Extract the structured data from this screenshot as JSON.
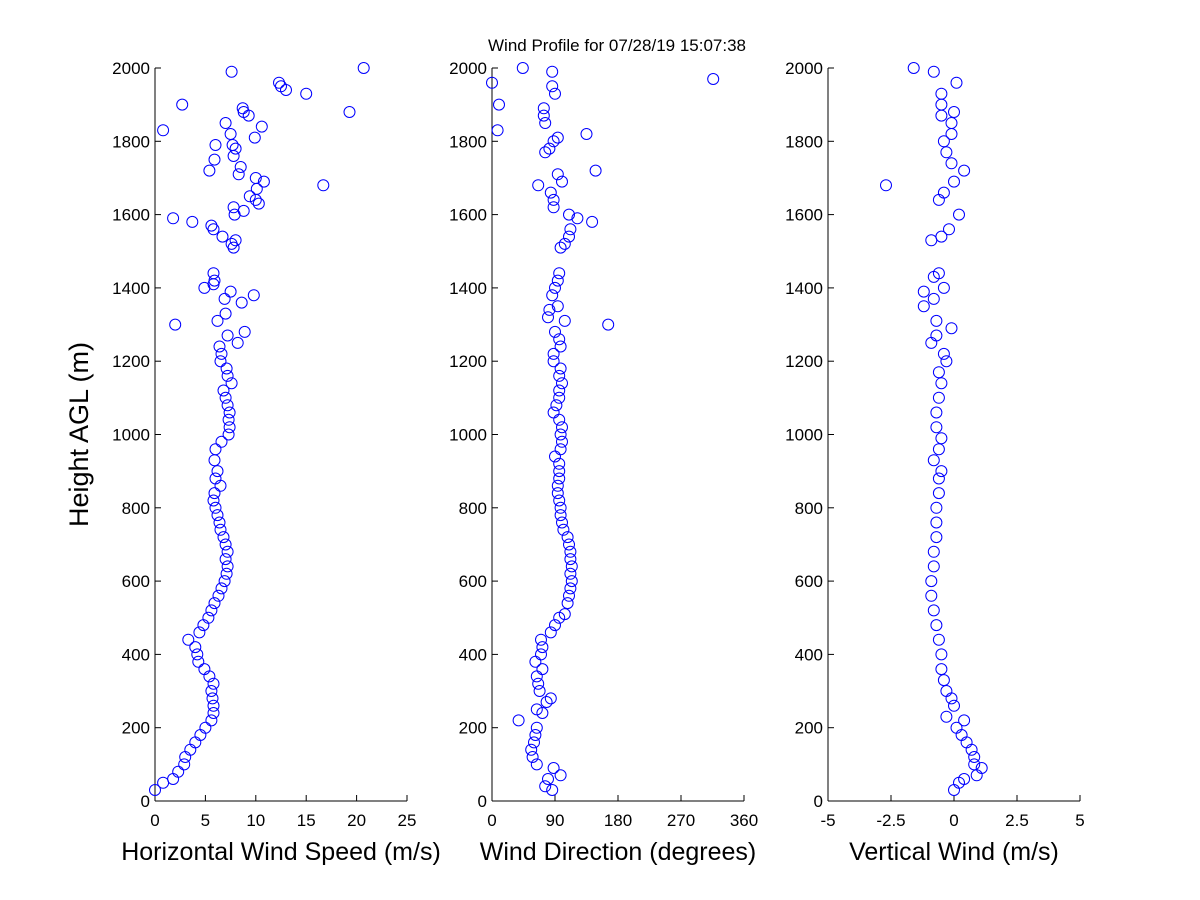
{
  "title": "Wind Profile for  07/28/19 15:07:38",
  "chart_data": [
    {
      "type": "scatter",
      "title": "Wind Profile for  07/28/19 15:07:38",
      "xlabel": "Horizontal Wind Speed (m/s)",
      "ylabel": "Height AGL (m)",
      "xlim": [
        0,
        25
      ],
      "ylim": [
        0,
        2000
      ],
      "xticks": [
        "0",
        "5",
        "10",
        "15",
        "20",
        "25"
      ],
      "yticks": [
        "0",
        "200",
        "400",
        "600",
        "800",
        "1000",
        "1200",
        "1400",
        "1600",
        "1800",
        "2000"
      ],
      "marker": "open-circle",
      "marker_color": "#0000ff",
      "grid": false,
      "points": [
        [
          0.0,
          30
        ],
        [
          0.8,
          50
        ],
        [
          1.8,
          60
        ],
        [
          2.3,
          80
        ],
        [
          2.9,
          100
        ],
        [
          3.0,
          120
        ],
        [
          3.5,
          140
        ],
        [
          4.0,
          160
        ],
        [
          4.5,
          180
        ],
        [
          5.0,
          200
        ],
        [
          5.6,
          220
        ],
        [
          5.8,
          240
        ],
        [
          5.8,
          260
        ],
        [
          5.7,
          280
        ],
        [
          5.6,
          300
        ],
        [
          5.8,
          320
        ],
        [
          5.4,
          340
        ],
        [
          4.9,
          360
        ],
        [
          4.3,
          380
        ],
        [
          4.2,
          400
        ],
        [
          4.0,
          420
        ],
        [
          3.3,
          440
        ],
        [
          4.4,
          460
        ],
        [
          4.8,
          480
        ],
        [
          5.3,
          500
        ],
        [
          5.6,
          520
        ],
        [
          5.9,
          540
        ],
        [
          6.3,
          560
        ],
        [
          6.6,
          580
        ],
        [
          6.9,
          600
        ],
        [
          7.1,
          620
        ],
        [
          7.2,
          640
        ],
        [
          7.0,
          660
        ],
        [
          7.2,
          680
        ],
        [
          7.0,
          700
        ],
        [
          6.8,
          720
        ],
        [
          6.5,
          740
        ],
        [
          6.4,
          760
        ],
        [
          6.2,
          780
        ],
        [
          6.0,
          800
        ],
        [
          5.8,
          820
        ],
        [
          5.9,
          840
        ],
        [
          6.5,
          860
        ],
        [
          6.0,
          880
        ],
        [
          6.2,
          900
        ],
        [
          5.9,
          930
        ],
        [
          6.0,
          960
        ],
        [
          6.6,
          980
        ],
        [
          7.3,
          1000
        ],
        [
          7.4,
          1020
        ],
        [
          7.3,
          1040
        ],
        [
          7.4,
          1060
        ],
        [
          7.2,
          1080
        ],
        [
          7.0,
          1100
        ],
        [
          6.8,
          1120
        ],
        [
          7.6,
          1140
        ],
        [
          7.2,
          1160
        ],
        [
          7.1,
          1180
        ],
        [
          6.5,
          1200
        ],
        [
          6.6,
          1220
        ],
        [
          6.4,
          1240
        ],
        [
          8.2,
          1250
        ],
        [
          7.2,
          1270
        ],
        [
          8.9,
          1280
        ],
        [
          2.0,
          1300
        ],
        [
          6.2,
          1310
        ],
        [
          7.0,
          1330
        ],
        [
          8.6,
          1360
        ],
        [
          6.9,
          1370
        ],
        [
          9.8,
          1380
        ],
        [
          7.5,
          1390
        ],
        [
          4.9,
          1400
        ],
        [
          5.8,
          1410
        ],
        [
          5.9,
          1420
        ],
        [
          5.8,
          1440
        ],
        [
          7.8,
          1510
        ],
        [
          7.6,
          1520
        ],
        [
          8.0,
          1530
        ],
        [
          6.7,
          1540
        ],
        [
          5.8,
          1560
        ],
        [
          5.6,
          1570
        ],
        [
          3.7,
          1580
        ],
        [
          1.8,
          1590
        ],
        [
          7.9,
          1600
        ],
        [
          8.8,
          1610
        ],
        [
          7.8,
          1620
        ],
        [
          10.3,
          1630
        ],
        [
          10.0,
          1640
        ],
        [
          9.4,
          1650
        ],
        [
          10.1,
          1670
        ],
        [
          16.7,
          1680
        ],
        [
          10.8,
          1690
        ],
        [
          10.0,
          1700
        ],
        [
          8.3,
          1710
        ],
        [
          5.4,
          1720
        ],
        [
          8.5,
          1730
        ],
        [
          5.9,
          1750
        ],
        [
          7.8,
          1760
        ],
        [
          8.0,
          1780
        ],
        [
          7.7,
          1790
        ],
        [
          6.0,
          1790
        ],
        [
          9.9,
          1810
        ],
        [
          7.5,
          1820
        ],
        [
          0.8,
          1830
        ],
        [
          10.6,
          1840
        ],
        [
          7.0,
          1850
        ],
        [
          9.3,
          1870
        ],
        [
          8.8,
          1880
        ],
        [
          19.3,
          1880
        ],
        [
          8.7,
          1890
        ],
        [
          2.7,
          1900
        ],
        [
          15.0,
          1930
        ],
        [
          13.0,
          1940
        ],
        [
          12.5,
          1950
        ],
        [
          12.3,
          1960
        ],
        [
          7.6,
          1990
        ],
        [
          20.7,
          2000
        ]
      ]
    },
    {
      "type": "scatter",
      "xlabel": "Wind Direction (degrees)",
      "ylabel": "",
      "xlim": [
        0,
        360
      ],
      "ylim": [
        0,
        2000
      ],
      "xticks": [
        "0",
        "90",
        "180",
        "270",
        "360"
      ],
      "yticks": [
        "0",
        "200",
        "400",
        "600",
        "800",
        "1000",
        "1200",
        "1400",
        "1600",
        "1800",
        "2000"
      ],
      "marker": "open-circle",
      "marker_color": "#0000ff",
      "grid": false,
      "points": [
        [
          86,
          30
        ],
        [
          76,
          40
        ],
        [
          80,
          60
        ],
        [
          98,
          70
        ],
        [
          88,
          90
        ],
        [
          64,
          100
        ],
        [
          58,
          120
        ],
        [
          56,
          140
        ],
        [
          60,
          160
        ],
        [
          62,
          180
        ],
        [
          64,
          200
        ],
        [
          38,
          220
        ],
        [
          72,
          240
        ],
        [
          64,
          250
        ],
        [
          78,
          270
        ],
        [
          84,
          280
        ],
        [
          68,
          300
        ],
        [
          66,
          320
        ],
        [
          64,
          340
        ],
        [
          72,
          360
        ],
        [
          62,
          380
        ],
        [
          70,
          400
        ],
        [
          72,
          420
        ],
        [
          70,
          440
        ],
        [
          84,
          460
        ],
        [
          90,
          480
        ],
        [
          96,
          500
        ],
        [
          104,
          510
        ],
        [
          108,
          540
        ],
        [
          110,
          560
        ],
        [
          112,
          580
        ],
        [
          114,
          600
        ],
        [
          112,
          620
        ],
        [
          114,
          640
        ],
        [
          112,
          660
        ],
        [
          112,
          680
        ],
        [
          110,
          700
        ],
        [
          108,
          720
        ],
        [
          102,
          740
        ],
        [
          100,
          760
        ],
        [
          98,
          780
        ],
        [
          98,
          800
        ],
        [
          96,
          820
        ],
        [
          94,
          840
        ],
        [
          94,
          860
        ],
        [
          96,
          880
        ],
        [
          96,
          900
        ],
        [
          96,
          920
        ],
        [
          90,
          940
        ],
        [
          98,
          960
        ],
        [
          100,
          980
        ],
        [
          98,
          1000
        ],
        [
          100,
          1020
        ],
        [
          96,
          1040
        ],
        [
          88,
          1060
        ],
        [
          92,
          1080
        ],
        [
          96,
          1100
        ],
        [
          96,
          1120
        ],
        [
          100,
          1140
        ],
        [
          96,
          1160
        ],
        [
          98,
          1180
        ],
        [
          88,
          1200
        ],
        [
          88,
          1220
        ],
        [
          98,
          1240
        ],
        [
          96,
          1260
        ],
        [
          90,
          1280
        ],
        [
          166,
          1300
        ],
        [
          104,
          1310
        ],
        [
          80,
          1320
        ],
        [
          82,
          1340
        ],
        [
          94,
          1350
        ],
        [
          86,
          1380
        ],
        [
          90,
          1400
        ],
        [
          94,
          1420
        ],
        [
          96,
          1440
        ],
        [
          98,
          1510
        ],
        [
          104,
          1520
        ],
        [
          110,
          1540
        ],
        [
          112,
          1560
        ],
        [
          143,
          1580
        ],
        [
          122,
          1590
        ],
        [
          110,
          1600
        ],
        [
          88,
          1620
        ],
        [
          88,
          1640
        ],
        [
          84,
          1660
        ],
        [
          66,
          1680
        ],
        [
          100,
          1690
        ],
        [
          94,
          1710
        ],
        [
          148,
          1720
        ],
        [
          76,
          1770
        ],
        [
          82,
          1780
        ],
        [
          88,
          1800
        ],
        [
          94,
          1810
        ],
        [
          135,
          1820
        ],
        [
          76,
          1850
        ],
        [
          74,
          1870
        ],
        [
          74,
          1890
        ],
        [
          8,
          1830
        ],
        [
          10,
          1900
        ],
        [
          90,
          1930
        ],
        [
          86,
          1950
        ],
        [
          0,
          1960
        ],
        [
          316,
          1970
        ],
        [
          86,
          1990
        ],
        [
          44,
          2000
        ]
      ]
    },
    {
      "type": "scatter",
      "xlabel": "Vertical Wind (m/s)",
      "ylabel": "",
      "xlim": [
        -5,
        5
      ],
      "xticks": [
        "-5",
        "-2.5",
        "0",
        "2.5",
        "5"
      ],
      "ylim": [
        0,
        2000
      ],
      "yticks": [
        "0",
        "200",
        "400",
        "600",
        "800",
        "1000",
        "1200",
        "1400",
        "1600",
        "1800",
        "2000"
      ],
      "marker": "open-circle",
      "marker_color": "#0000ff",
      "grid": false,
      "points": [
        [
          0.0,
          30
        ],
        [
          0.2,
          50
        ],
        [
          0.4,
          60
        ],
        [
          0.9,
          70
        ],
        [
          1.1,
          90
        ],
        [
          0.8,
          100
        ],
        [
          0.8,
          120
        ],
        [
          0.7,
          140
        ],
        [
          0.5,
          160
        ],
        [
          0.3,
          180
        ],
        [
          0.1,
          200
        ],
        [
          0.4,
          220
        ],
        [
          -0.3,
          230
        ],
        [
          0.0,
          260
        ],
        [
          -0.1,
          280
        ],
        [
          -0.3,
          300
        ],
        [
          -0.4,
          330
        ],
        [
          -0.5,
          360
        ],
        [
          -0.5,
          400
        ],
        [
          -0.6,
          440
        ],
        [
          -0.7,
          480
        ],
        [
          -0.8,
          520
        ],
        [
          -0.9,
          560
        ],
        [
          -0.9,
          600
        ],
        [
          -0.8,
          640
        ],
        [
          -0.8,
          680
        ],
        [
          -0.7,
          720
        ],
        [
          -0.7,
          760
        ],
        [
          -0.7,
          800
        ],
        [
          -0.6,
          840
        ],
        [
          -0.6,
          880
        ],
        [
          -0.5,
          900
        ],
        [
          -0.8,
          930
        ],
        [
          -0.6,
          960
        ],
        [
          -0.5,
          990
        ],
        [
          -0.7,
          1020
        ],
        [
          -0.7,
          1060
        ],
        [
          -0.6,
          1100
        ],
        [
          -0.5,
          1140
        ],
        [
          -0.6,
          1170
        ],
        [
          -0.3,
          1200
        ],
        [
          -0.4,
          1220
        ],
        [
          -0.9,
          1250
        ],
        [
          -0.7,
          1270
        ],
        [
          -0.1,
          1290
        ],
        [
          -0.7,
          1310
        ],
        [
          -1.2,
          1350
        ],
        [
          -0.8,
          1370
        ],
        [
          -1.2,
          1390
        ],
        [
          -0.4,
          1400
        ],
        [
          -0.8,
          1430
        ],
        [
          -0.6,
          1440
        ],
        [
          -0.9,
          1530
        ],
        [
          -0.5,
          1540
        ],
        [
          -0.2,
          1560
        ],
        [
          0.2,
          1600
        ],
        [
          -0.6,
          1640
        ],
        [
          -0.4,
          1660
        ],
        [
          -2.7,
          1680
        ],
        [
          0.0,
          1690
        ],
        [
          0.4,
          1720
        ],
        [
          -0.1,
          1740
        ],
        [
          -0.3,
          1770
        ],
        [
          -0.4,
          1800
        ],
        [
          -0.1,
          1820
        ],
        [
          -0.1,
          1850
        ],
        [
          -0.5,
          1870
        ],
        [
          0.0,
          1880
        ],
        [
          -0.5,
          1900
        ],
        [
          -0.5,
          1930
        ],
        [
          0.1,
          1960
        ],
        [
          -0.8,
          1990
        ],
        [
          -1.6,
          2000
        ]
      ]
    }
  ]
}
